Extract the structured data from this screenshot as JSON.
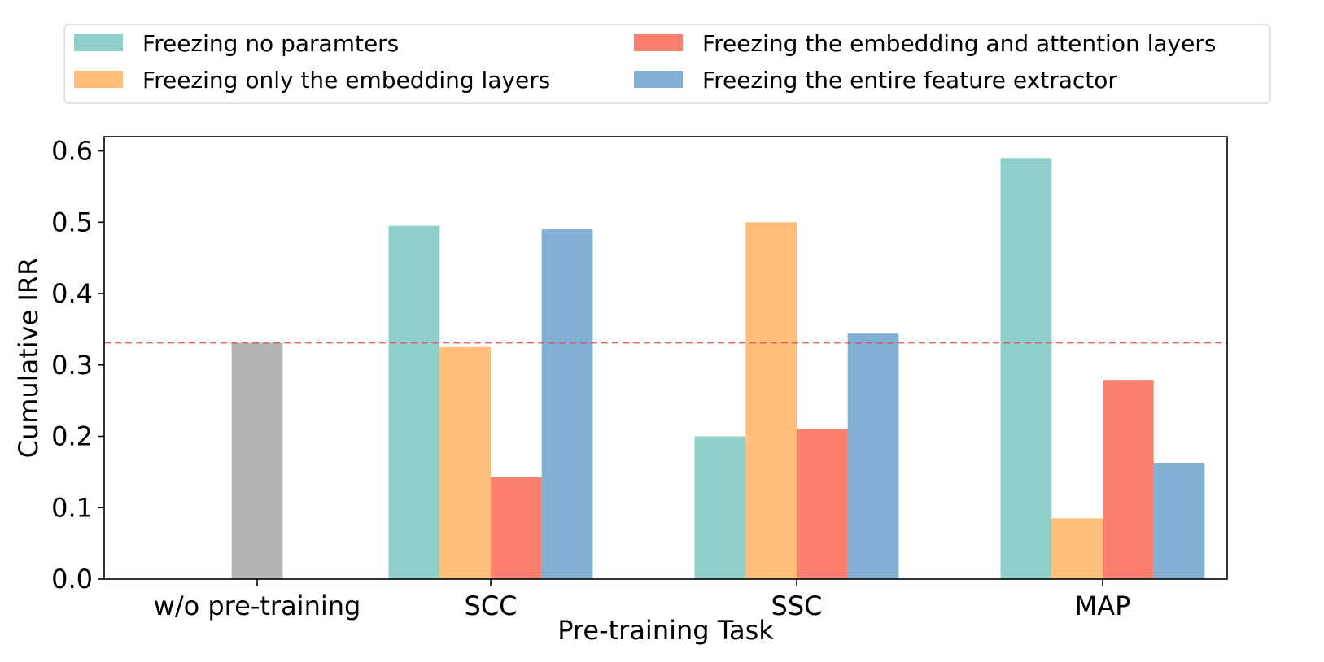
{
  "chart_data": {
    "type": "bar",
    "title": "",
    "xlabel": "Pre-training Task",
    "ylabel": "Cumulative IRR",
    "ylim": [
      0,
      0.62
    ],
    "yticks": [
      0.0,
      0.1,
      0.2,
      0.3,
      0.4,
      0.5,
      0.6
    ],
    "ytick_labels": [
      "0.0",
      "0.1",
      "0.2",
      "0.3",
      "0.4",
      "0.5",
      "0.6"
    ],
    "categories": [
      "w/o pre-training",
      "SCC",
      "SSC",
      "MAP"
    ],
    "legend_position": "top",
    "baseline": {
      "name": "w/o pre-training",
      "category": "w/o pre-training",
      "value": 0.331,
      "color": "#b3b3b3"
    },
    "reference_line": {
      "value": 0.331,
      "color": "#e8474a",
      "style": "dashed"
    },
    "series": [
      {
        "name": "Freezing no paramters",
        "color": "#8ecfc9",
        "values": [
          null,
          0.495,
          0.2,
          0.59
        ]
      },
      {
        "name": "Freezing only the embedding layers",
        "color": "#ffbe7a",
        "values": [
          null,
          0.325,
          0.5,
          0.085
        ]
      },
      {
        "name": "Freezing the embedding and attention layers",
        "color": "#fa7f6f",
        "values": [
          null,
          0.143,
          0.21,
          0.279
        ]
      },
      {
        "name": "Freezing the entire feature extractor",
        "color": "#82b0d2",
        "values": [
          null,
          0.49,
          0.344,
          0.163
        ]
      }
    ]
  }
}
